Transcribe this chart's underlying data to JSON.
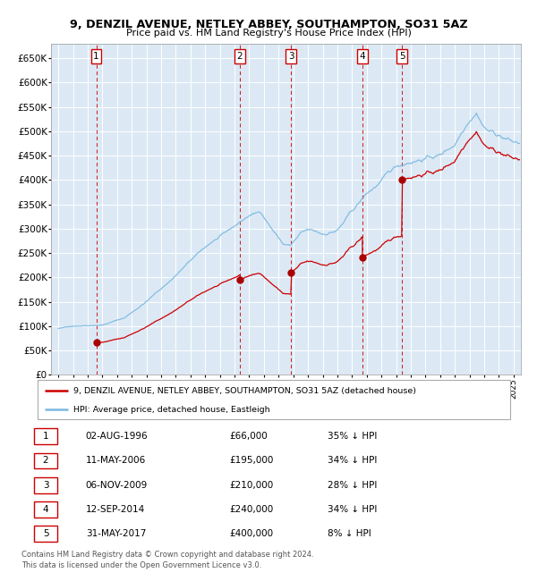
{
  "title1": "9, DENZIL AVENUE, NETLEY ABBEY, SOUTHAMPTON, SO31 5AZ",
  "title2": "Price paid vs. HM Land Registry's House Price Index (HPI)",
  "xlim": [
    1993.5,
    2025.5
  ],
  "ylim": [
    0,
    680000
  ],
  "yticks": [
    0,
    50000,
    100000,
    150000,
    200000,
    250000,
    300000,
    350000,
    400000,
    450000,
    500000,
    550000,
    600000,
    650000
  ],
  "ytick_labels": [
    "£0",
    "£50K",
    "£100K",
    "£150K",
    "£200K",
    "£250K",
    "£300K",
    "£350K",
    "£400K",
    "£450K",
    "£500K",
    "£550K",
    "£600K",
    "£650K"
  ],
  "bg_color": "#dce9f5",
  "grid_color": "#ffffff",
  "sale_dates": [
    1996.58,
    2006.36,
    2009.84,
    2014.7,
    2017.41
  ],
  "sale_prices": [
    66000,
    195000,
    210000,
    240000,
    400000
  ],
  "sale_labels": [
    "1",
    "2",
    "3",
    "4",
    "5"
  ],
  "hpi_line_color": "#7ab8e0",
  "price_line_color": "#cc0000",
  "sale_marker_color": "#aa0000",
  "vline_color": "#cc0000",
  "legend_line1": "9, DENZIL AVENUE, NETLEY ABBEY, SOUTHAMPTON, SO31 5AZ (detached house)",
  "legend_line2": "HPI: Average price, detached house, Eastleigh",
  "table": [
    [
      "1",
      "02-AUG-1996",
      "£66,000",
      "35% ↓ HPI"
    ],
    [
      "2",
      "11-MAY-2006",
      "£195,000",
      "34% ↓ HPI"
    ],
    [
      "3",
      "06-NOV-2009",
      "£210,000",
      "28% ↓ HPI"
    ],
    [
      "4",
      "12-SEP-2014",
      "£240,000",
      "34% ↓ HPI"
    ],
    [
      "5",
      "31-MAY-2017",
      "£400,000",
      "8% ↓ HPI"
    ]
  ],
  "footer1": "Contains HM Land Registry data © Crown copyright and database right 2024.",
  "footer2": "This data is licensed under the Open Government Licence v3.0."
}
